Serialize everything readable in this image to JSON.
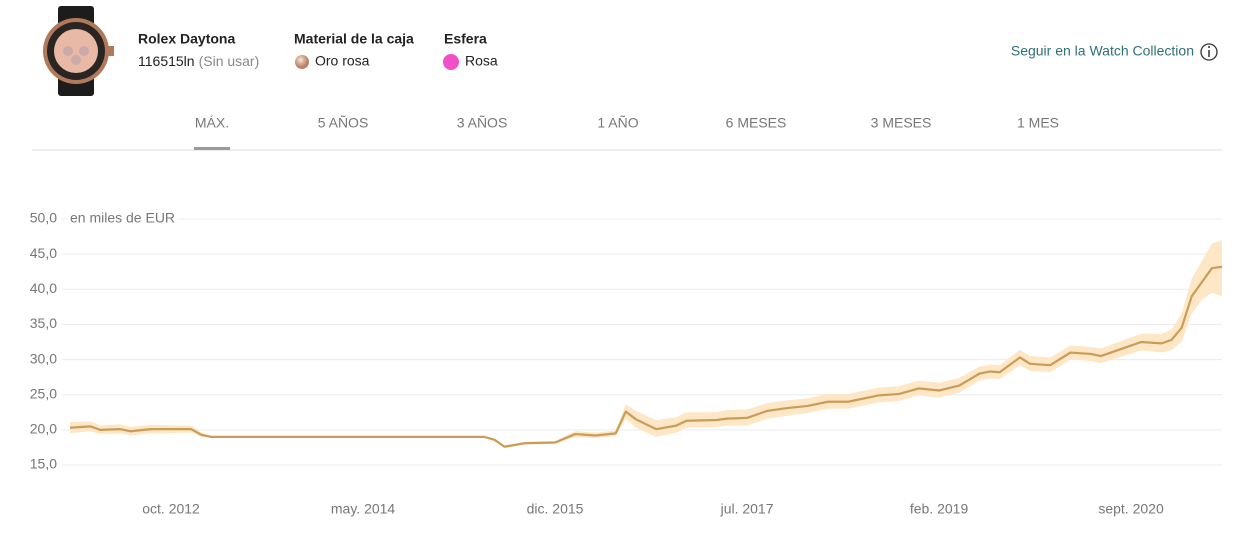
{
  "header": {
    "model": "Rolex Daytona",
    "reference": "116515ln",
    "condition": "(Sin usar)",
    "case_material_label": "Material de la caja",
    "case_material": "Oro rosa",
    "dial_label": "Esfera",
    "dial": "Rosa",
    "follow_link": "Seguir en la Watch Collection"
  },
  "tabs": [
    "MÁX.",
    "5 AÑOS",
    "3 AÑOS",
    "1 AÑO",
    "6 MESES",
    "3 MESES",
    "1 MES"
  ],
  "chart_data": {
    "type": "line",
    "ylabel": "en miles de EUR",
    "x": [
      "2011-12",
      "2012-02",
      "2012-03",
      "2012-05",
      "2012-06",
      "2012-08",
      "2012-12",
      "2013-01",
      "2013-02",
      "2015-05",
      "2015-06",
      "2015-07",
      "2015-09",
      "2015-12",
      "2016-02",
      "2016-04",
      "2016-06",
      "2016-07",
      "2016-08",
      "2016-10",
      "2016-12",
      "2017-01",
      "2017-04",
      "2017-05",
      "2017-07",
      "2017-09",
      "2017-11",
      "2018-01",
      "2018-03",
      "2018-05",
      "2018-08",
      "2018-10",
      "2018-12",
      "2019-02",
      "2019-04",
      "2019-06",
      "2019-07",
      "2019-08",
      "2019-10",
      "2019-11",
      "2020-01",
      "2020-03",
      "2020-05",
      "2020-06",
      "2020-08",
      "2020-10",
      "2020-12",
      "2021-01",
      "2021-02",
      "2021-03",
      "2021-04",
      "2021-05",
      "2021-06"
    ],
    "values": [
      20.3,
      20.5,
      20.0,
      20.1,
      19.8,
      20.1,
      20.1,
      19.3,
      19.0,
      19.0,
      18.6,
      17.6,
      18.1,
      18.2,
      19.4,
      19.2,
      19.5,
      22.6,
      21.5,
      20.1,
      20.6,
      21.3,
      21.4,
      21.6,
      21.7,
      22.7,
      23.1,
      23.4,
      24.0,
      24.0,
      24.9,
      25.1,
      25.9,
      25.6,
      26.3,
      28.0,
      28.3,
      28.2,
      30.3,
      29.4,
      29.2,
      31.0,
      30.8,
      30.5,
      31.5,
      32.5,
      32.3,
      32.8,
      34.5,
      39.0,
      41.0,
      43.0,
      43.2
    ],
    "band_low": [
      19.5,
      19.8,
      19.4,
      19.5,
      19.2,
      19.5,
      19.6,
      19.0,
      18.9,
      18.9,
      18.4,
      17.4,
      17.9,
      18.0,
      19.0,
      18.8,
      19.1,
      21.6,
      20.3,
      19.0,
      19.6,
      20.3,
      20.4,
      20.6,
      20.6,
      21.6,
      22.0,
      22.4,
      23.0,
      23.0,
      23.9,
      24.1,
      24.9,
      24.6,
      25.3,
      27.0,
      27.3,
      27.2,
      29.2,
      28.4,
      28.2,
      30.0,
      29.8,
      29.5,
      30.4,
      31.3,
      31.0,
      31.3,
      32.5,
      36.5,
      38.5,
      39.5,
      39.0
    ],
    "band_high": [
      21.1,
      21.2,
      20.6,
      20.8,
      20.4,
      20.7,
      20.6,
      19.6,
      19.1,
      19.1,
      18.8,
      17.8,
      18.3,
      18.4,
      19.8,
      19.6,
      19.9,
      23.6,
      22.7,
      21.4,
      21.8,
      22.5,
      22.5,
      22.8,
      22.9,
      23.8,
      24.2,
      24.5,
      25.1,
      25.1,
      26.0,
      26.2,
      27.0,
      26.7,
      27.4,
      29.0,
      29.3,
      29.2,
      31.4,
      30.5,
      30.3,
      32.0,
      31.8,
      31.6,
      32.6,
      33.7,
      33.6,
      34.3,
      36.5,
      41.5,
      44.0,
      46.5,
      47.0
    ],
    "color": "#c99c58",
    "band_color": "#fde7c6",
    "xlim": [
      "2011-12",
      "2021-06"
    ],
    "xticks": [
      {
        "value": "2012-10",
        "label": "oct. 2012"
      },
      {
        "value": "2014-05",
        "label": "may. 2014"
      },
      {
        "value": "2015-12",
        "label": "dic. 2015"
      },
      {
        "value": "2017-07",
        "label": "jul. 2017"
      },
      {
        "value": "2019-02",
        "label": "feb. 2019"
      },
      {
        "value": "2020-09",
        "label": "sept. 2020"
      }
    ],
    "ylim": [
      15,
      50
    ],
    "yticks": [
      {
        "value": 15,
        "label": "15,0"
      },
      {
        "value": 20,
        "label": "20,0"
      },
      {
        "value": 25,
        "label": "25,0"
      },
      {
        "value": 30,
        "label": "30,0"
      },
      {
        "value": 35,
        "label": "35,0"
      },
      {
        "value": 40,
        "label": "40,0"
      },
      {
        "value": 45,
        "label": "45,0"
      },
      {
        "value": 50,
        "label": "50,0"
      }
    ],
    "grid": true
  }
}
